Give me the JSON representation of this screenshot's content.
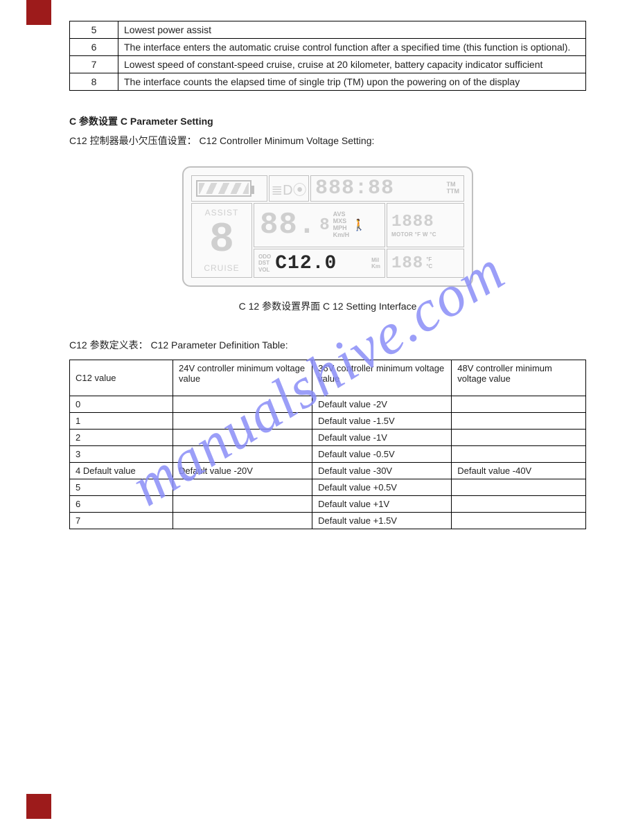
{
  "page": {
    "corner_color": "#9d1b1b",
    "watermark_text": "manualshive.com",
    "watermark_color": "#8a8ef7"
  },
  "table1": {
    "rows": [
      {
        "n": "5",
        "text": "Lowest power assist"
      },
      {
        "n": "6",
        "text": "The interface enters the automatic cruise control function after a specified time (this function is optional)."
      },
      {
        "n": "7",
        "text": "Lowest speed of constant-speed cruise, cruise at 20 kilometer, battery capacity indicator sufficient"
      },
      {
        "n": "8",
        "text": "The interface counts the elapsed time of single trip (TM) upon the powering on of the display"
      }
    ]
  },
  "section": {
    "heading_cn": "C 参数设置",
    "heading_en": "C Parameter Setting",
    "para_cn": "C12 控制器最小欠压值设置：",
    "para_en": "C12 Controller Minimum Voltage Setting:",
    "caption_cn": "C 12 参数设置界面",
    "caption_en": "C 12 Setting Interface",
    "note_cn": "C12 参数定义表：",
    "note_en": "C12 Parameter Definition Table:"
  },
  "lcd": {
    "time_segments": "888:88",
    "tm": "TM",
    "ttm": "TTM",
    "assist_label": "ASSIST",
    "assist_digit": "8",
    "cruise_label": "CRUISE",
    "speed_main": "88.",
    "speed_sub": "8",
    "speed_avs": "AVS",
    "speed_mxs": "MXS",
    "speed_mph": "MPH",
    "speed_kmh": "Km/H",
    "walk_glyph": "🚶",
    "odo_l1": "ODO",
    "odo_l2": "DST",
    "odo_l3": "VOL",
    "odo_value": "C12.0",
    "odo_mil": "Mil",
    "odo_km": "Km",
    "motor_val": "1888",
    "motor_lbl": "MOTOR °F W °C",
    "amb_val": "188",
    "amb_f": "°F",
    "amb_c": "°C"
  },
  "table2": {
    "head": {
      "c1": "C12 value",
      "c2": "24V controller minimum voltage value",
      "c3": "36V controller minimum voltage value",
      "c4": "48V controller minimum voltage value"
    },
    "rows": [
      {
        "a": "0",
        "b": "",
        "c": "Default value -2V",
        "d": ""
      },
      {
        "a": "1",
        "b": "",
        "c": "Default value -1.5V",
        "d": ""
      },
      {
        "a": "2",
        "b": "",
        "c": "Default value -1V",
        "d": ""
      },
      {
        "a": "3",
        "b": "",
        "c": "Default value -0.5V",
        "d": ""
      },
      {
        "a": "4 Default value",
        "b": "Default value -20V",
        "c": "Default value -30V",
        "d": "Default value -40V"
      },
      {
        "a": "5",
        "b": "",
        "c": "Default value +0.5V",
        "d": ""
      },
      {
        "a": "6",
        "b": "",
        "c": "Default value +1V",
        "d": ""
      },
      {
        "a": "7",
        "b": "",
        "c": "Default value +1.5V",
        "d": ""
      }
    ]
  }
}
